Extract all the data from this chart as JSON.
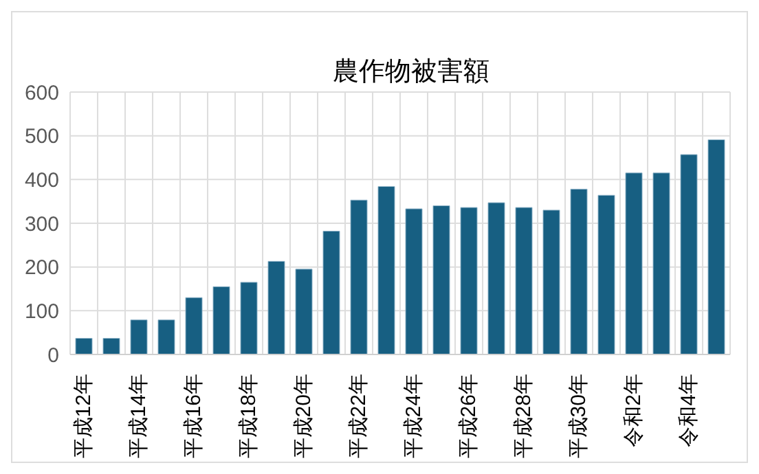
{
  "chart_data": {
    "type": "bar",
    "title": "農作物被害額",
    "categories": [
      "平成12年",
      null,
      "平成14年",
      null,
      "平成16年",
      null,
      "平成18年",
      null,
      "平成20年",
      null,
      "平成22年",
      null,
      "平成24年",
      null,
      "平成26年",
      null,
      "平成28年",
      null,
      "平成30年",
      null,
      "令和2年",
      null,
      "令和4年",
      null
    ],
    "values": [
      37,
      37,
      79,
      79,
      130,
      155,
      165,
      213,
      195,
      282,
      353,
      384,
      333,
      340,
      336,
      347,
      336,
      330,
      378,
      364,
      415,
      415,
      457,
      491
    ],
    "color": "#175f82",
    "ylim": [
      0,
      600
    ],
    "yticks": [
      0,
      100,
      200,
      300,
      400,
      500,
      600
    ],
    "grid": true
  }
}
